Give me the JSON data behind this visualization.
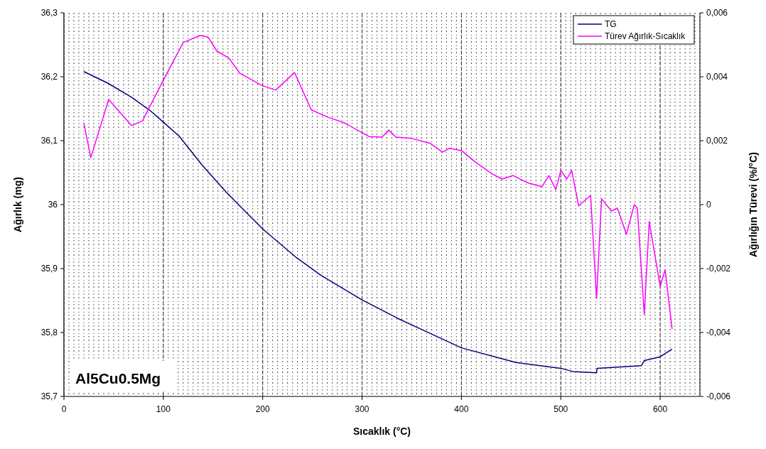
{
  "chart_data": {
    "type": "line",
    "xlabel": "Sıcaklık (°C)",
    "ylabel": "Ağırlık (mg)",
    "y2label": "Ağırlığın Türevi (%/°C)",
    "annotations": [
      "Al5Cu0.5Mg"
    ],
    "xlim": [
      0,
      640
    ],
    "xticks": [
      0,
      100,
      200,
      300,
      400,
      500,
      600
    ],
    "ylim": [
      35.7,
      36.3
    ],
    "yticks": [
      {
        "value": 35.7,
        "label": "35,7"
      },
      {
        "value": 35.8,
        "label": "35,8"
      },
      {
        "value": 35.9,
        "label": "35,9"
      },
      36,
      {
        "value": 36.1,
        "label": "36,1"
      },
      {
        "value": 36.2,
        "label": "36,2"
      },
      {
        "value": 36.3,
        "label": "36,3"
      }
    ],
    "y2lim": [
      -0.006,
      0.006
    ],
    "y2ticks": [
      {
        "value": -0.006,
        "label": "-0,006"
      },
      {
        "value": -0.004,
        "label": "-0,004"
      },
      {
        "value": -0.002,
        "label": "-0,002"
      },
      0,
      {
        "value": 0.002,
        "label": "0,002"
      },
      {
        "value": 0.004,
        "label": "0,004"
      },
      {
        "value": 0.006,
        "label": "0,006"
      }
    ],
    "grid": true,
    "legend": "top right",
    "marker": "none",
    "line_style": "solid",
    "series": [
      {
        "name": "TG",
        "color": "#000080",
        "x": [
          20,
          44,
          68,
          86,
          100,
          116,
          139,
          163,
          182,
          200,
          234,
          259,
          300,
          336,
          354,
          400,
          455,
          500,
          512,
          536,
          536.5,
          581,
          584,
          600,
          612
        ],
        "values": [
          36.208,
          36.19,
          36.168,
          36.148,
          36.129,
          36.107,
          36.062,
          36.02,
          35.99,
          35.962,
          35.917,
          35.889,
          35.851,
          35.822,
          35.809,
          35.776,
          35.753,
          35.744,
          35.739,
          35.737,
          35.744,
          35.748,
          35.756,
          35.762,
          35.774
        ]
      },
      {
        "name": "Türev Ağırlık-Sıcaklık",
        "color": "#ff00ff",
        "axis": "y2",
        "x": [
          20,
          27,
          45,
          68,
          79,
          100,
          120,
          137,
          145,
          154,
          166,
          177,
          199,
          213,
          232,
          249,
          266,
          282,
          307,
          320,
          327,
          334,
          350,
          369,
          381,
          388,
          400,
          414,
          431,
          441,
          452,
          466,
          481,
          488,
          495,
          500,
          506,
          511,
          518,
          530,
          536,
          541,
          551,
          557,
          566,
          574,
          577,
          584,
          589,
          600,
          605,
          612
        ],
        "values": [
          0.00256,
          0.00147,
          0.00329,
          0.00247,
          0.00262,
          0.00389,
          0.00507,
          0.00529,
          0.00524,
          0.0048,
          0.00458,
          0.00411,
          0.00373,
          0.00358,
          0.00413,
          0.00296,
          0.00273,
          0.00256,
          0.00213,
          0.00211,
          0.00233,
          0.00211,
          0.00207,
          0.00191,
          0.00164,
          0.00176,
          0.00169,
          0.00133,
          0.00096,
          0.0008,
          0.00091,
          0.00069,
          0.00056,
          0.00091,
          0.00047,
          0.00107,
          0.0008,
          0.00107,
          -4e-05,
          0.00029,
          -0.00293,
          0.00018,
          -0.0002,
          -0.00011,
          -0.00093,
          0,
          -0.00011,
          -0.00344,
          -0.00053,
          -0.00256,
          -0.00204,
          -0.00389
        ]
      }
    ]
  }
}
